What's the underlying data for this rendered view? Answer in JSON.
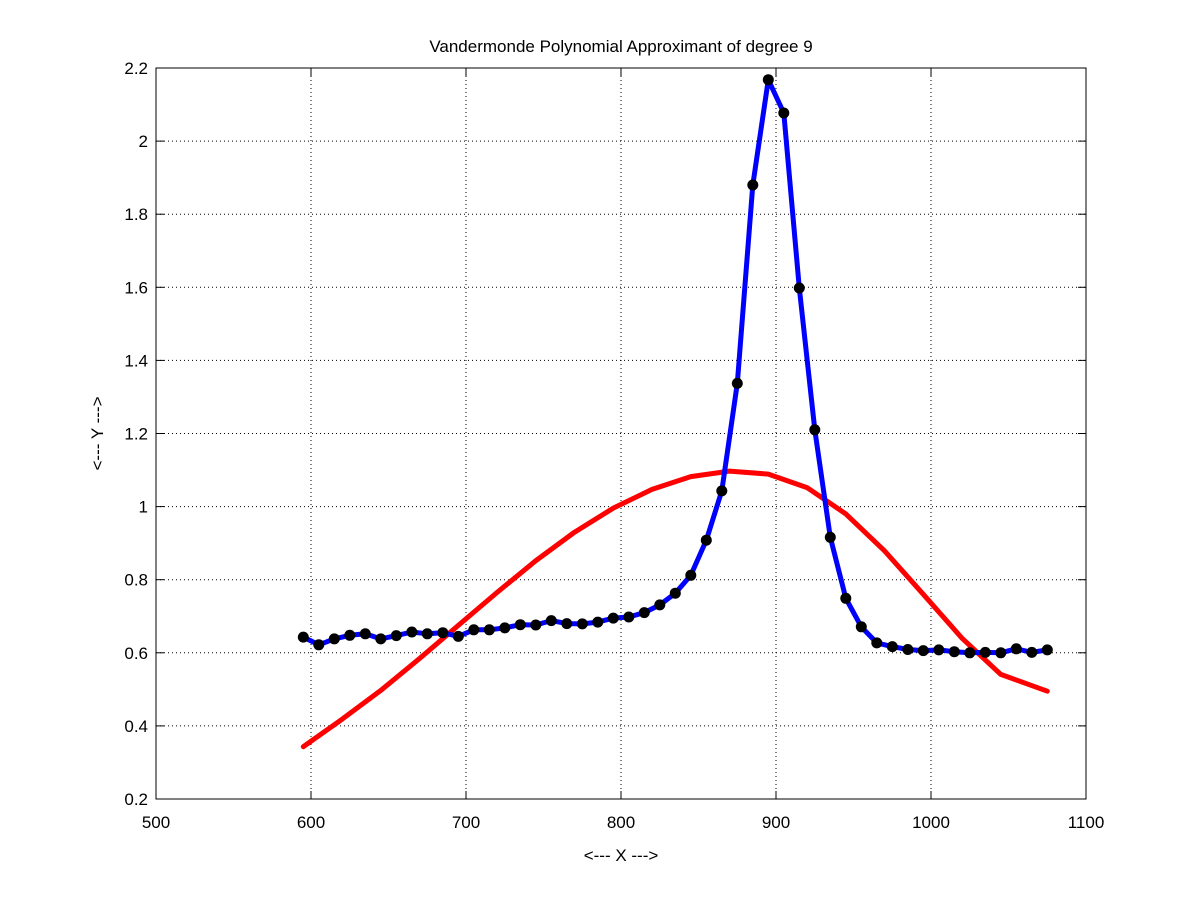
{
  "chart_data": {
    "type": "line",
    "title": "Vandermonde Polynomial Approximant of degree 9",
    "xlabel": "<--- X --->",
    "ylabel": "<--- Y --->",
    "xlim": [
      500,
      1100
    ],
    "ylim": [
      0.2,
      2.2
    ],
    "xticks": [
      500,
      600,
      700,
      800,
      900,
      1000,
      1100
    ],
    "xtick_labels": [
      "500",
      "600",
      "700",
      "800",
      "900",
      "1000",
      "1100"
    ],
    "yticks": [
      0.2,
      0.4,
      0.6,
      0.8,
      1.0,
      1.2,
      1.4,
      1.6,
      1.8,
      2.0,
      2.2
    ],
    "ytick_labels": [
      "0.2",
      "0.4",
      "0.6",
      "0.8",
      "1",
      "1.2",
      "1.4",
      "1.6",
      "1.8",
      "2",
      "2.2"
    ],
    "grid": true,
    "series": [
      {
        "color": "#0000ff",
        "style": "line-with-markers",
        "marker_color": "#000000",
        "x": [
          595,
          605,
          615,
          625,
          635,
          645,
          655,
          665,
          675,
          685,
          695,
          705,
          715,
          725,
          735,
          745,
          755,
          765,
          775,
          785,
          795,
          805,
          815,
          825,
          835,
          845,
          855,
          865,
          875,
          885,
          895,
          905,
          915,
          925,
          935,
          945,
          955,
          965,
          975,
          985,
          995,
          1005,
          1015,
          1025,
          1035,
          1045,
          1055,
          1065,
          1075
        ],
        "y": [
          0.643,
          0.622,
          0.638,
          0.648,
          0.652,
          0.638,
          0.647,
          0.657,
          0.652,
          0.655,
          0.645,
          0.663,
          0.663,
          0.668,
          0.677,
          0.676,
          0.688,
          0.68,
          0.679,
          0.684,
          0.695,
          0.698,
          0.71,
          0.731,
          0.763,
          0.812,
          0.908,
          1.043,
          1.337,
          1.88,
          2.168,
          2.077,
          1.598,
          1.21,
          0.916,
          0.749,
          0.671,
          0.627,
          0.617,
          0.609,
          0.606,
          0.608,
          0.603,
          0.6,
          0.601,
          0.6,
          0.611,
          0.601,
          0.608
        ]
      },
      {
        "color": "#ff0000",
        "style": "line",
        "x": [
          595,
          620,
          645,
          670,
          695,
          720,
          745,
          770,
          795,
          820,
          845,
          870,
          895,
          920,
          945,
          970,
          995,
          1020,
          1045,
          1075
        ],
        "y": [
          0.343,
          0.418,
          0.497,
          0.584,
          0.675,
          0.765,
          0.852,
          0.93,
          0.996,
          1.047,
          1.082,
          1.097,
          1.089,
          1.052,
          0.98,
          0.879,
          0.76,
          0.64,
          0.541,
          0.495
        ]
      }
    ]
  }
}
